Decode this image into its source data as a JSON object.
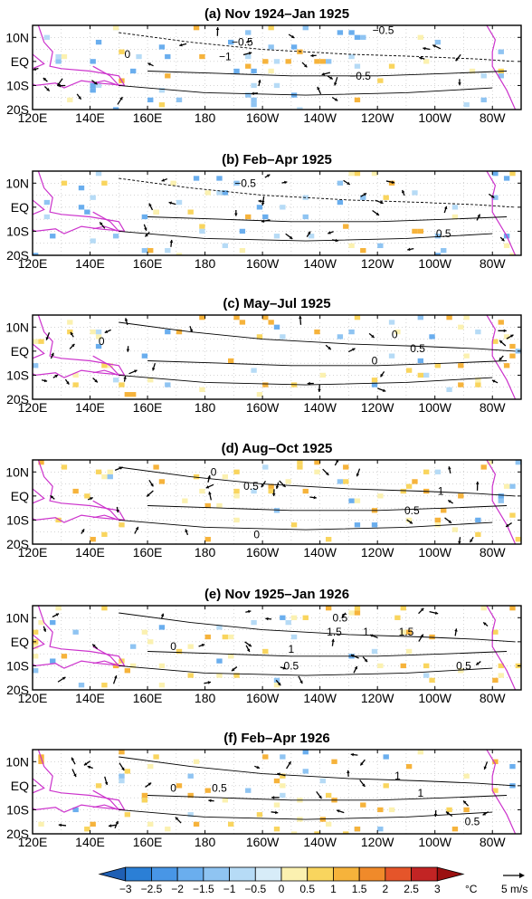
{
  "chart_data": [
    {
      "type": "heatmap",
      "title": "(a)  Nov 1924–Jan 1925",
      "x_ticks": [
        "120E",
        "140E",
        "160E",
        "180",
        "160W",
        "140W",
        "120W",
        "100W",
        "80W"
      ],
      "y_ticks": [
        "10N",
        "EQ",
        "10S",
        "20S"
      ],
      "xlim": [
        120,
        290
      ],
      "ylim": [
        -20,
        15
      ],
      "contour_labels": [
        {
          "text": "−0.5",
          "lon": 193,
          "lat": 8
        },
        {
          "text": "−0.5",
          "lon": 242,
          "lat": 13
        },
        {
          "text": "−1",
          "lon": 187,
          "lat": 2
        },
        {
          "text": "−0.5",
          "lon": 234,
          "lat": -6
        },
        {
          "text": "0",
          "lon": 153,
          "lat": 3
        }
      ]
    },
    {
      "type": "heatmap",
      "title": "(b)  Feb–Apr 1925",
      "x_ticks": [
        "120E",
        "140E",
        "160E",
        "180",
        "160W",
        "140W",
        "120W",
        "100W",
        "80W"
      ],
      "y_ticks": [
        "10N",
        "EQ",
        "10S",
        "20S"
      ],
      "xlim": [
        120,
        290
      ],
      "ylim": [
        -20,
        15
      ],
      "contour_labels": [
        {
          "text": "−0.5",
          "lon": 194,
          "lat": 10
        },
        {
          "text": "0.5",
          "lon": 263,
          "lat": -11
        }
      ]
    },
    {
      "type": "heatmap",
      "title": "(c)  May–Jul 1925",
      "x_ticks": [
        "120E",
        "140E",
        "160E",
        "180",
        "160W",
        "140W",
        "120W",
        "100W",
        "80W"
      ],
      "y_ticks": [
        "10N",
        "EQ",
        "10S",
        "20S"
      ],
      "xlim": [
        120,
        290
      ],
      "ylim": [
        -20,
        15
      ],
      "contour_labels": [
        {
          "text": "0",
          "lon": 144,
          "lat": 4
        },
        {
          "text": "0",
          "lon": 246,
          "lat": 7
        },
        {
          "text": "0.5",
          "lon": 254,
          "lat": 1
        },
        {
          "text": "0",
          "lon": 239,
          "lat": -4
        }
      ]
    },
    {
      "type": "heatmap",
      "title": "(d)  Aug–Oct 1925",
      "x_ticks": [
        "120E",
        "140E",
        "160E",
        "180",
        "160W",
        "140W",
        "120W",
        "100W",
        "80W"
      ],
      "y_ticks": [
        "10N",
        "EQ",
        "10S",
        "20S"
      ],
      "xlim": [
        120,
        290
      ],
      "ylim": [
        -20,
        15
      ],
      "contour_labels": [
        {
          "text": "0",
          "lon": 183,
          "lat": 10
        },
        {
          "text": "0.5",
          "lon": 196,
          "lat": 4
        },
        {
          "text": "1",
          "lon": 262,
          "lat": 2
        },
        {
          "text": "0.5",
          "lon": 252,
          "lat": -6
        },
        {
          "text": "0",
          "lon": 198,
          "lat": -16
        }
      ]
    },
    {
      "type": "heatmap",
      "title": "(e)  Nov 1925–Jan 1926",
      "x_ticks": [
        "120E",
        "140E",
        "160E",
        "180",
        "160W",
        "140W",
        "120W",
        "100W",
        "80W"
      ],
      "y_ticks": [
        "10N",
        "EQ",
        "10S",
        "20S"
      ],
      "xlim": [
        120,
        290
      ],
      "ylim": [
        -20,
        15
      ],
      "contour_labels": [
        {
          "text": "0.5",
          "lon": 227,
          "lat": 10
        },
        {
          "text": "1.5",
          "lon": 225,
          "lat": 4
        },
        {
          "text": "1",
          "lon": 236,
          "lat": 4
        },
        {
          "text": "1.5",
          "lon": 250,
          "lat": 4
        },
        {
          "text": "0",
          "lon": 169,
          "lat": -2
        },
        {
          "text": "1",
          "lon": 210,
          "lat": -3
        },
        {
          "text": "0.5",
          "lon": 210,
          "lat": -10
        },
        {
          "text": "0.5",
          "lon": 270,
          "lat": -10
        }
      ]
    },
    {
      "type": "heatmap",
      "title": "(f)  Feb–Apr 1926",
      "x_ticks": [
        "120E",
        "140E",
        "160E",
        "180",
        "160W",
        "140W",
        "120W",
        "100W",
        "80W"
      ],
      "y_ticks": [
        "10N",
        "EQ",
        "10S",
        "20S"
      ],
      "xlim": [
        120,
        290
      ],
      "ylim": [
        -20,
        15
      ],
      "contour_labels": [
        {
          "text": "1",
          "lon": 247,
          "lat": 4
        },
        {
          "text": "0",
          "lon": 169,
          "lat": -1
        },
        {
          "text": "0.5",
          "lon": 185,
          "lat": -1
        },
        {
          "text": "1",
          "lon": 255,
          "lat": -3
        },
        {
          "text": "0.5",
          "lon": 273,
          "lat": -15
        }
      ]
    }
  ],
  "colorbar": {
    "ticks": [
      "−3",
      "−2.5",
      "−2",
      "−1.5",
      "−1",
      "−0.5",
      "0",
      "0.5",
      "1",
      "1.5",
      "2",
      "2.5",
      "3"
    ],
    "unit": "°C",
    "colors": [
      "#1f5fb4",
      "#2b7fd6",
      "#4896e6",
      "#6aaeee",
      "#8fc4f2",
      "#b6dbf6",
      "#d7ecf8",
      "#fbf1b0",
      "#f9d55e",
      "#f6b33b",
      "#f08a2a",
      "#e5552a",
      "#c22424",
      "#9b1010"
    ]
  },
  "vector_key": {
    "label": "5 m/s"
  }
}
